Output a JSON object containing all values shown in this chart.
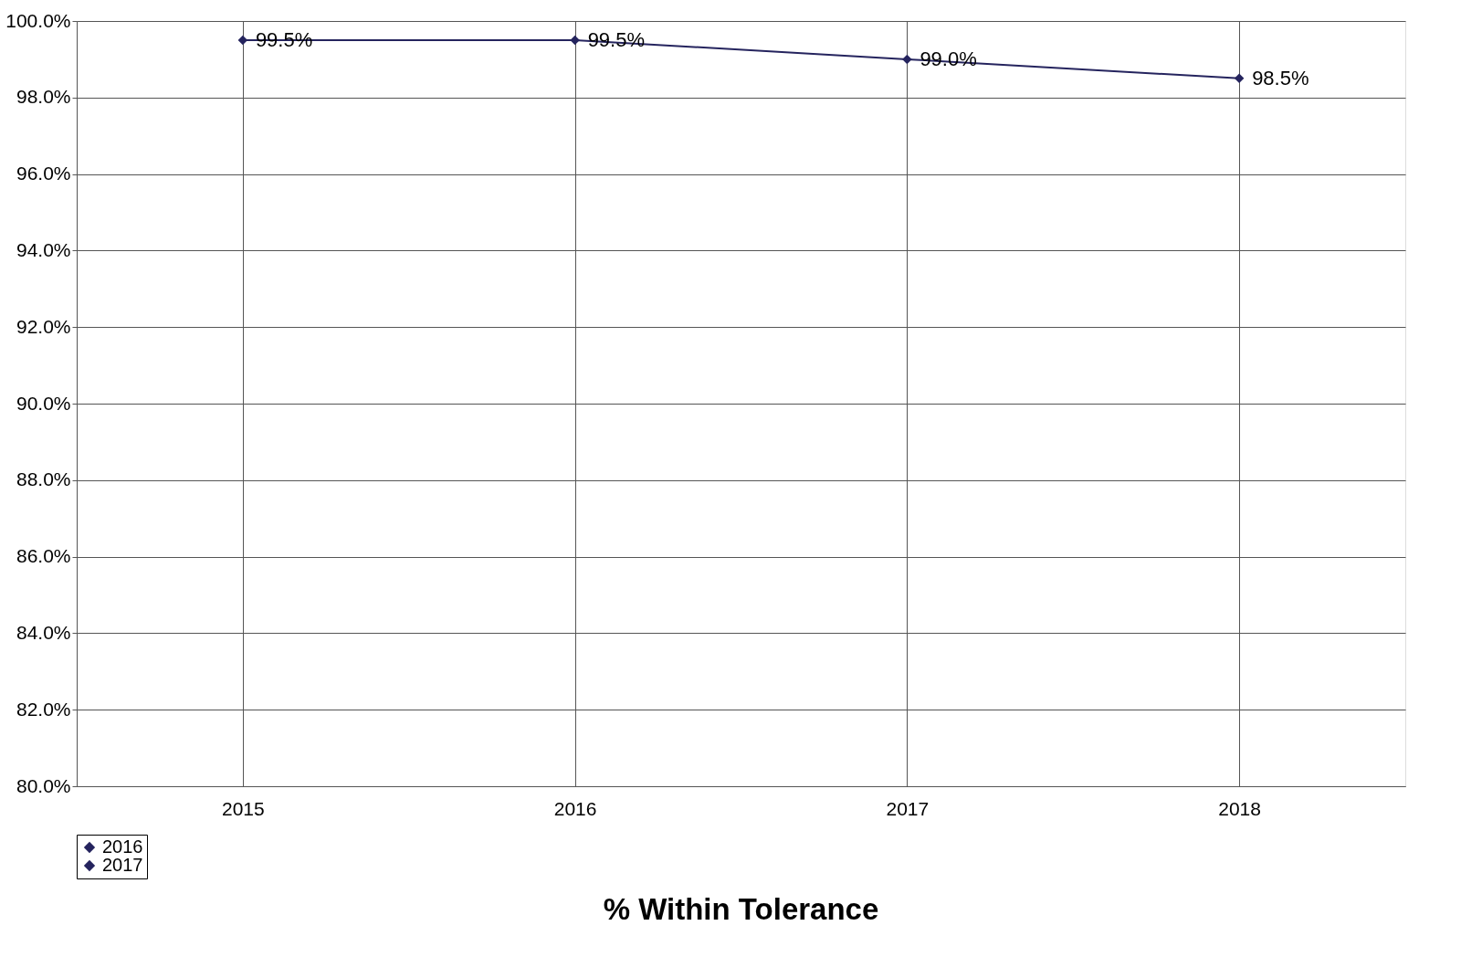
{
  "chart_data": {
    "type": "line",
    "title": "% Within Tolerance",
    "categories": [
      "2015",
      "2016",
      "2017",
      "2018"
    ],
    "series": [
      {
        "name": "2016",
        "color": "#25245e",
        "values": [
          99.5,
          99.5,
          99.0,
          98.5
        ],
        "value_labels": [
          "99.5%",
          "99.5%",
          "99.0%",
          "98.5%"
        ]
      },
      {
        "name": "2017",
        "color": "#25245e",
        "values": [
          null,
          null,
          null,
          null
        ]
      }
    ],
    "ylim": [
      80,
      100
    ],
    "yticks": [
      {
        "value": 80,
        "label": "80.0%"
      },
      {
        "value": 82,
        "label": "82.0%"
      },
      {
        "value": 84,
        "label": "84.0%"
      },
      {
        "value": 86,
        "label": "86.0%"
      },
      {
        "value": 88,
        "label": "88.0%"
      },
      {
        "value": 90,
        "label": "90.0%"
      },
      {
        "value": 92,
        "label": "92.0%"
      },
      {
        "value": 94,
        "label": "94.0%"
      },
      {
        "value": 96,
        "label": "96.0%"
      },
      {
        "value": 98,
        "label": "98.0%"
      },
      {
        "value": 100,
        "label": "100.0%"
      }
    ],
    "grid": true,
    "legend": "bottom",
    "marker": "diamond",
    "line_style": "solid"
  }
}
